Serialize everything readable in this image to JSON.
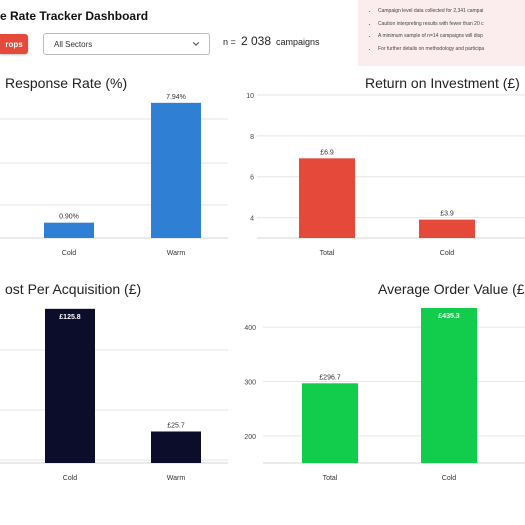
{
  "header": {
    "title": "e Rate Tracker Dashboard",
    "button_label": "rops",
    "sector_select": {
      "value": "All Sectors"
    },
    "n_label": "n =",
    "n_value": "2 038",
    "n_unit": "campaigns"
  },
  "notes": [
    "Campaign level data collected for 2,341 campai",
    "Caution interpreting results with fewer than 20 c",
    "A minimum sample of n=14 campaigns will disp",
    "For further details on methodology and participa"
  ],
  "colors": {
    "blue": "#2f7fd4",
    "red": "#e5493a",
    "navy": "#0b0d2b",
    "green": "#12cc4c",
    "button": "#e5493a",
    "notes_bg": "#fbeded"
  },
  "chart_data": [
    {
      "type": "bar",
      "title": "Response Rate (%)",
      "categories": [
        "Cold",
        "Warm"
      ],
      "values": [
        0.9,
        7.94
      ],
      "data_labels": [
        "0.90%",
        "7.94%"
      ],
      "ylim": [
        0,
        8.4
      ],
      "grid": true
    },
    {
      "type": "bar",
      "title": "Return on Investment (£)",
      "categories": [
        "Total",
        "Cold"
      ],
      "values": [
        6.9,
        3.9
      ],
      "data_labels": [
        "£6.9",
        "£3.9"
      ],
      "ylim": [
        3,
        10
      ],
      "ticks": [
        "4",
        "6",
        "8",
        "10"
      ],
      "grid": true
    },
    {
      "type": "bar",
      "title": "ost Per Acquisition (£)",
      "categories": [
        "Cold",
        "Warm"
      ],
      "values": [
        125.8,
        25.7
      ],
      "data_labels": [
        "£125.8",
        "£25.7"
      ],
      "ylim": [
        0,
        133
      ],
      "grid": true
    },
    {
      "type": "bar",
      "title": "Average Order Value (£)",
      "categories": [
        "Total",
        "Cold"
      ],
      "values": [
        296.7,
        435.3
      ],
      "data_labels": [
        "£296.7",
        "£435.3"
      ],
      "ylim": [
        150,
        450
      ],
      "ticks": [
        "200",
        "300",
        "400"
      ],
      "grid": true
    }
  ]
}
